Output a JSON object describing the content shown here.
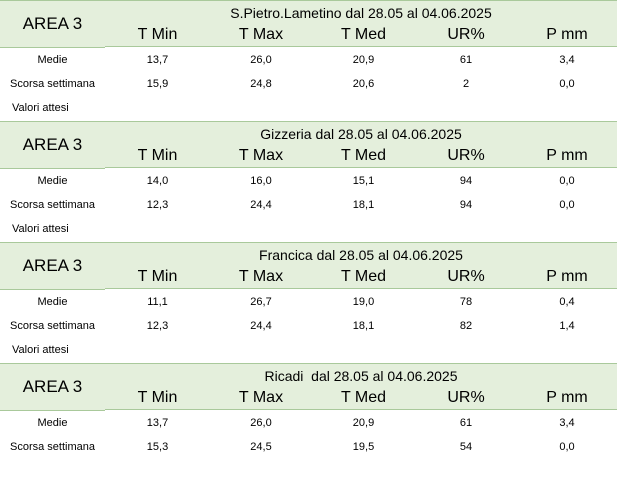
{
  "columns": [
    "T Min",
    "T Max",
    "T Med",
    "UR%",
    "P mm"
  ],
  "labels": {
    "medie": "Medie",
    "scorsa": "Scorsa settimana",
    "attesi": "Valori attesi"
  },
  "blocks": [
    {
      "area": "AREA 3",
      "title": "S.Pietro.Lametino dal 28.05 al 04.06.2025",
      "medie": [
        "13,7",
        "26,0",
        "20,9",
        "61",
        "3,4"
      ],
      "scorsa": [
        "15,9",
        "24,8",
        "20,6",
        "2",
        "0,0"
      ]
    },
    {
      "area": "AREA 3",
      "title": "Gizzeria dal 28.05 al 04.06.2025",
      "medie": [
        "14,0",
        "16,0",
        "15,1",
        "94",
        "0,0"
      ],
      "scorsa": [
        "12,3",
        "24,4",
        "18,1",
        "94",
        "0,0"
      ]
    },
    {
      "area": "AREA 3",
      "title": "Francica dal 28.05 al 04.06.2025",
      "medie": [
        "11,1",
        "26,7",
        "19,0",
        "78",
        "0,4"
      ],
      "scorsa": [
        "12,3",
        "24,4",
        "18,1",
        "82",
        "1,4"
      ]
    },
    {
      "area": "AREA 3",
      "title": "Ricadi  dal 28.05 al 04.06.2025",
      "medie": [
        "13,7",
        "26,0",
        "20,9",
        "61",
        "3,4"
      ],
      "scorsa": [
        "15,3",
        "24,5",
        "19,5",
        "54",
        "0,0"
      ]
    }
  ]
}
